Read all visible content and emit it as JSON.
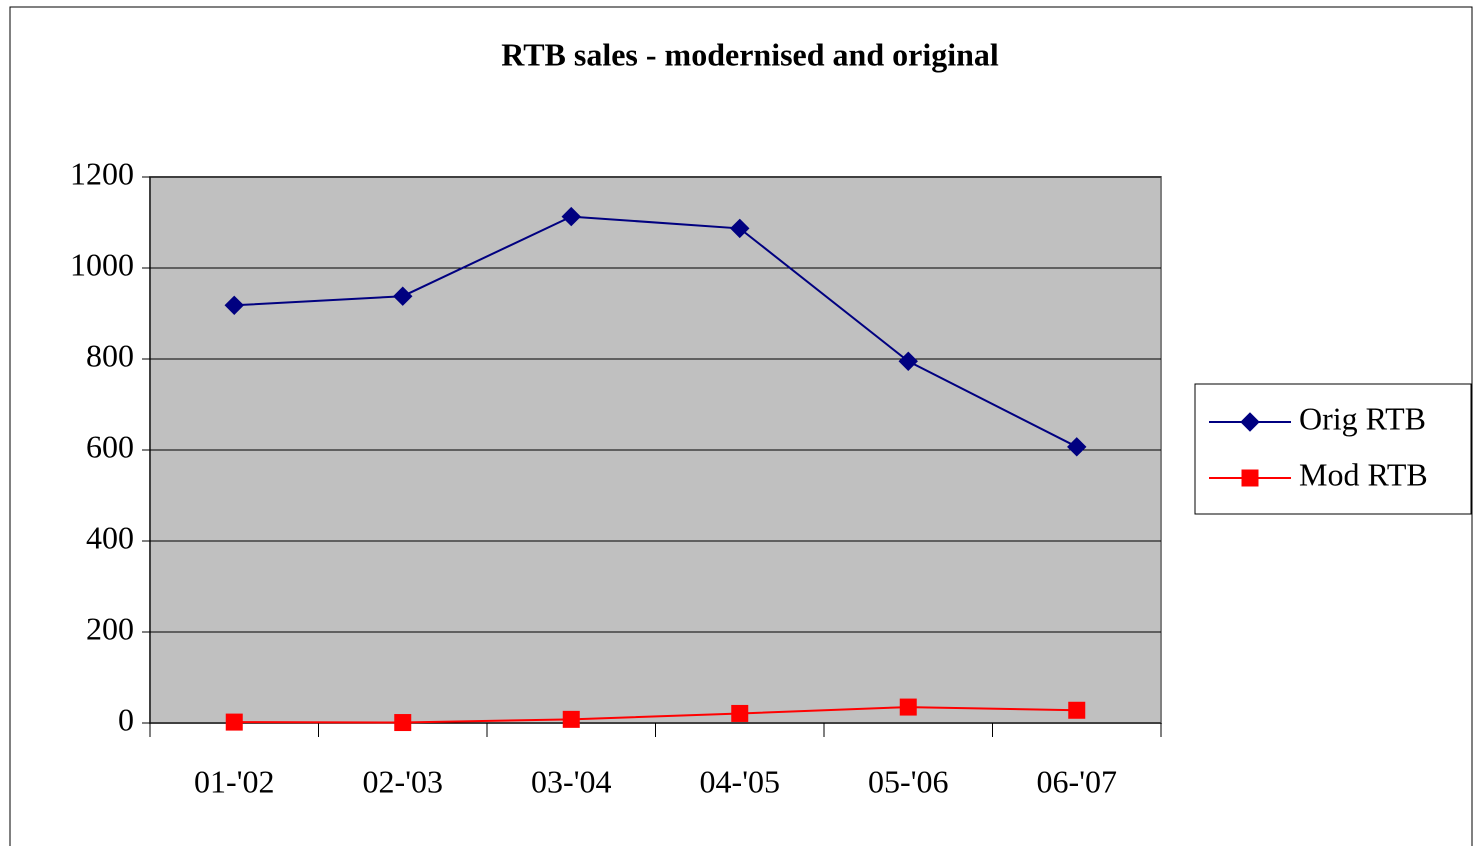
{
  "chart_data": {
    "type": "line",
    "title": "RTB sales - modernised and original",
    "categories": [
      "01-'02",
      "02-'03",
      "03-'04",
      "04-'05",
      "05-'06",
      "06-'07"
    ],
    "series": [
      {
        "name": "Orig RTB",
        "color": "#000080",
        "marker": "diamond",
        "values": [
          918,
          938,
          1113,
          1087,
          795,
          607
        ]
      },
      {
        "name": "Mod RTB",
        "color": "#ff0000",
        "marker": "square",
        "values": [
          2,
          1,
          8,
          21,
          35,
          28
        ]
      }
    ],
    "ylim": [
      0,
      1200
    ],
    "yticks": [
      0,
      200,
      400,
      600,
      800,
      1000,
      1200
    ],
    "grid": true,
    "legend": "right"
  }
}
